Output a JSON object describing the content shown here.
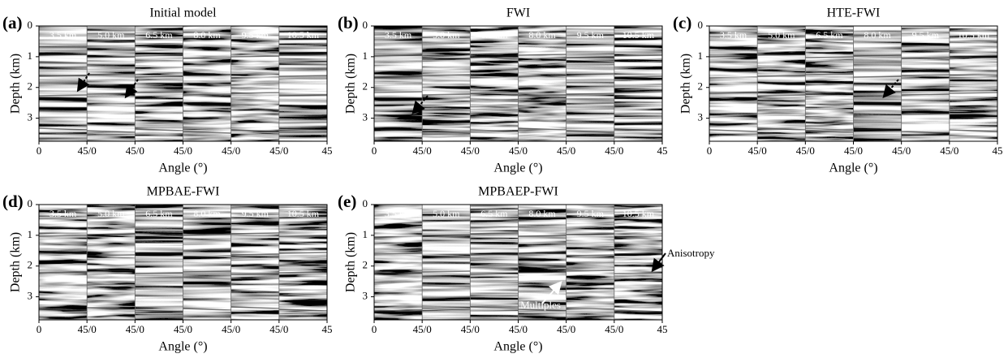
{
  "axes": {
    "xlabel": "Angle (°)",
    "ylabel": "Depth (km)",
    "xlim": [
      0,
      270
    ],
    "ylim": [
      0,
      3.75
    ],
    "xticks": [
      0,
      {
        "value": 45,
        "label": "45/0"
      },
      {
        "value": 90,
        "label": "45/0"
      },
      {
        "value": 135,
        "label": "45/0"
      },
      {
        "value": 180,
        "label": "45/0"
      },
      {
        "value": 225,
        "label": "45/0"
      },
      {
        "value": 270,
        "label": "45"
      }
    ],
    "yticks": [
      0,
      1,
      2,
      3
    ],
    "gathers": [
      "3.5 km",
      "5.0 km",
      "6.5 km",
      "8.0 km",
      "9.5 km",
      "10.5 km"
    ]
  },
  "panels": [
    {
      "letter": "(a)",
      "title": "Initial model"
    },
    {
      "letter": "(b)",
      "title": "FWI"
    },
    {
      "letter": "(c)",
      "title": "HTE-FWI"
    },
    {
      "letter": "(d)",
      "title": "MPBAE-FWI"
    },
    {
      "letter": "(e)",
      "title": "MPBAEP-FWI",
      "annotations": [
        "Multiples",
        "Anisotropy"
      ]
    }
  ]
}
